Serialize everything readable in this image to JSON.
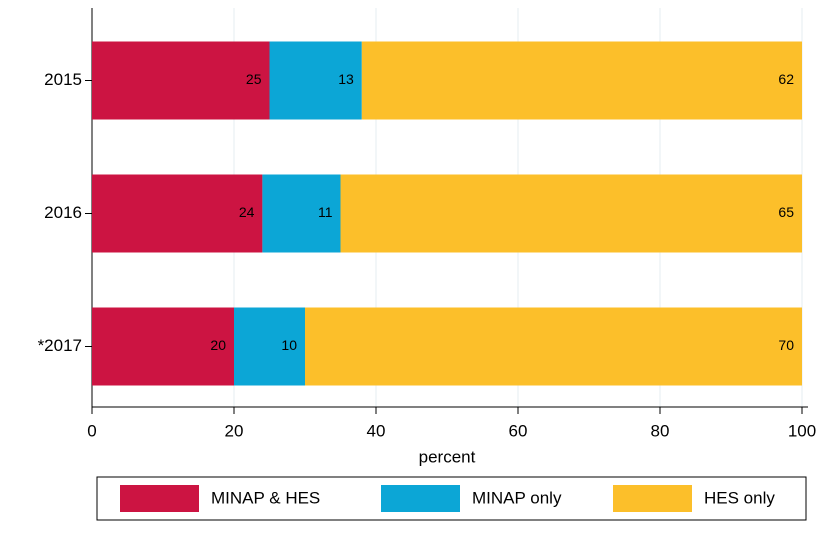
{
  "chart_data": {
    "type": "stacked_barh",
    "categories": [
      "2015",
      "2016",
      "*2017"
    ],
    "series": [
      {
        "name": "MINAP & HES",
        "color": "#cc1442",
        "values": [
          25,
          24,
          20
        ]
      },
      {
        "name": "MINAP only",
        "color": "#0ca6d6",
        "values": [
          13,
          11,
          10
        ]
      },
      {
        "name": "HES only",
        "color": "#fcbf2a",
        "values": [
          62,
          65,
          70
        ]
      }
    ],
    "xlabel": "percent",
    "xlim": [
      0,
      100
    ],
    "xticks": [
      0,
      20,
      40,
      60,
      80,
      100
    ],
    "grid": true,
    "legend": "bottom"
  }
}
